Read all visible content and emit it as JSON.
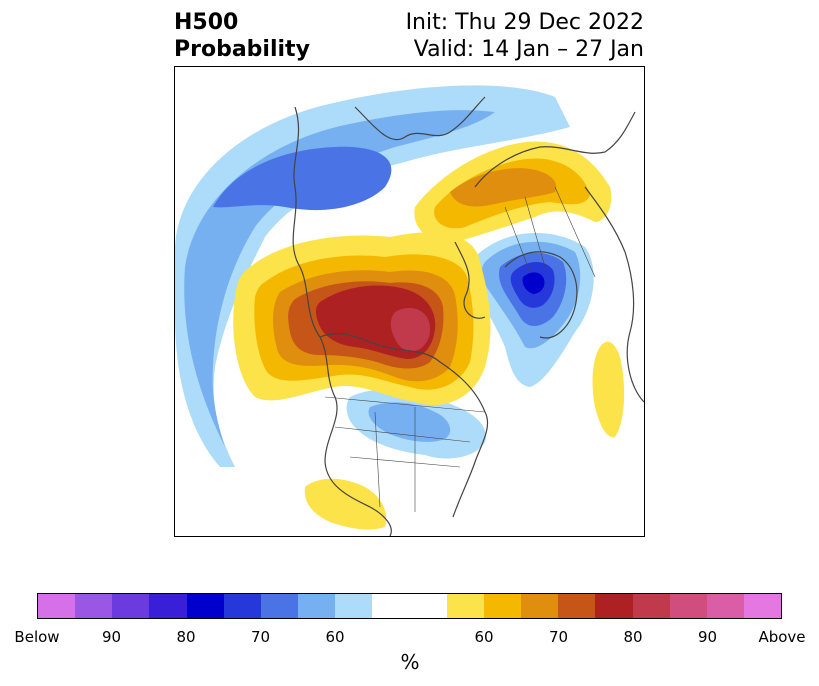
{
  "title": {
    "left_line1": "H500",
    "left_line2": "Probability",
    "right_line1": "Init: Thu 29 Dec 2022",
    "right_line2": "Valid: 14 Jan – 27 Jan"
  },
  "colorbar": {
    "unit": "%",
    "colors": [
      "#d670e9",
      "#9a57e3",
      "#6b3bdf",
      "#3a1fd8",
      "#0000cc",
      "#2539db",
      "#4a73e5",
      "#76b0f0",
      "#acdcf9",
      "#ffffff",
      "#ffffff",
      "#fde34a",
      "#f4b800",
      "#e08e0e",
      "#c65518",
      "#ae2122",
      "#c03a4c",
      "#cf4e7e",
      "#d95ea5",
      "#e577e0"
    ],
    "tick_labels": [
      "Below",
      "90",
      "80",
      "70",
      "60",
      "60",
      "70",
      "80",
      "90",
      "Above"
    ]
  },
  "map": {
    "projection": "north polar stereographic",
    "fill_colors": {
      "blue_60": "#acdcf9",
      "blue_65": "#76b0f0",
      "blue_70": "#4a73e5",
      "blue_75": "#2539db",
      "blue_80": "#0000cc",
      "yellow_60": "#fde34a",
      "yellow_65": "#f4b800",
      "orange_70": "#e08e0e",
      "orange_75": "#c65518",
      "red_80": "#ae2122",
      "red_85": "#c03a4c"
    }
  }
}
